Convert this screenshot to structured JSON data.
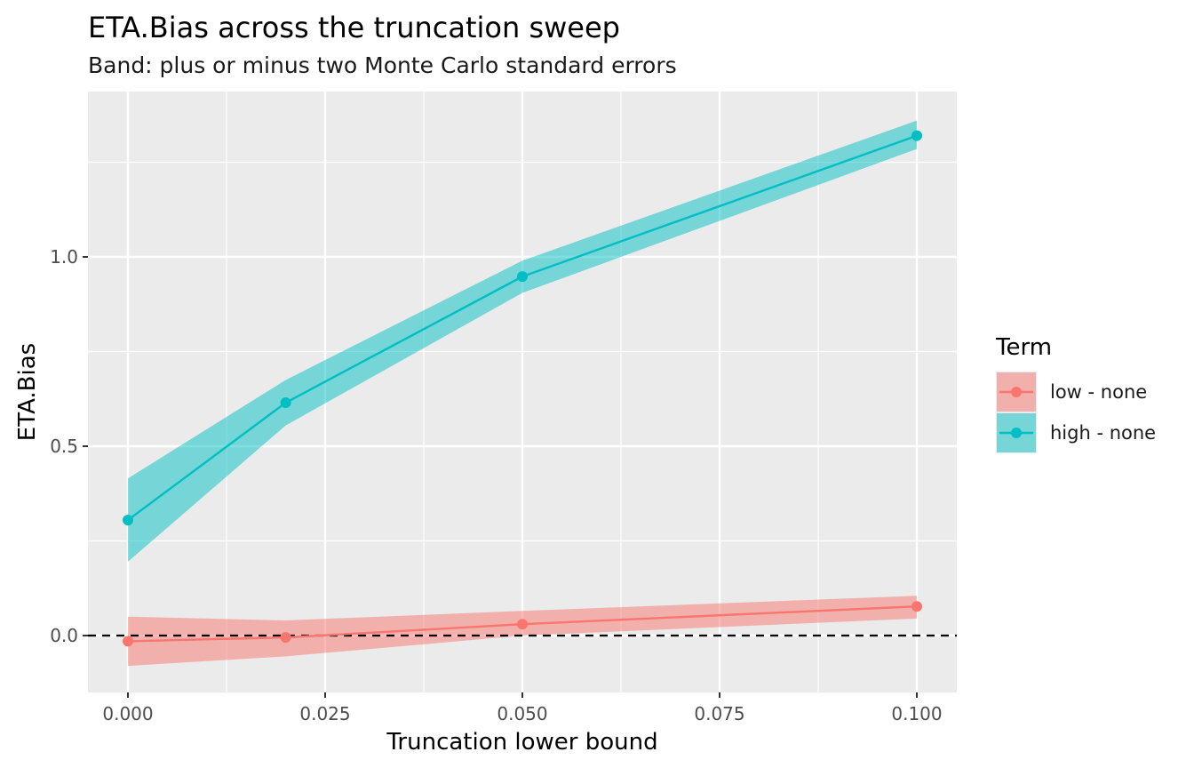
{
  "chart_data": {
    "type": "line",
    "title": "ETA.Bias across the truncation sweep",
    "subtitle": "Band: plus or minus two Monte Carlo standard errors",
    "xlabel": "Truncation lower bound",
    "ylabel": "ETA.Bias",
    "xlim": [
      -0.01,
      0.1
    ],
    "ylim": [
      -0.15,
      1.44
    ],
    "x_ticks": [
      "0.000",
      "0.025",
      "0.050",
      "0.075",
      "0.100"
    ],
    "y_ticks": [
      "0.0",
      "0.5",
      "1.0"
    ],
    "grid": true,
    "legend": {
      "title": "Term",
      "position": "right"
    },
    "reference_line": {
      "y": 0,
      "style": "dashed",
      "color": "#000000"
    },
    "series": [
      {
        "name": "low - none",
        "color": "#F8766D",
        "x": [
          0.0,
          0.02,
          0.05,
          0.1
        ],
        "y": [
          -0.015,
          -0.005,
          0.03,
          0.077
        ],
        "lower": [
          -0.08,
          -0.055,
          0.0,
          0.045
        ],
        "upper": [
          0.05,
          0.04,
          0.065,
          0.105
        ]
      },
      {
        "name": "high - none",
        "color": "#00BFC4",
        "x": [
          0.0,
          0.02,
          0.05,
          0.1
        ],
        "y": [
          0.305,
          0.615,
          0.948,
          1.32
        ],
        "lower": [
          0.195,
          0.555,
          0.905,
          1.285
        ],
        "upper": [
          0.415,
          0.675,
          0.99,
          1.36
        ]
      }
    ]
  }
}
